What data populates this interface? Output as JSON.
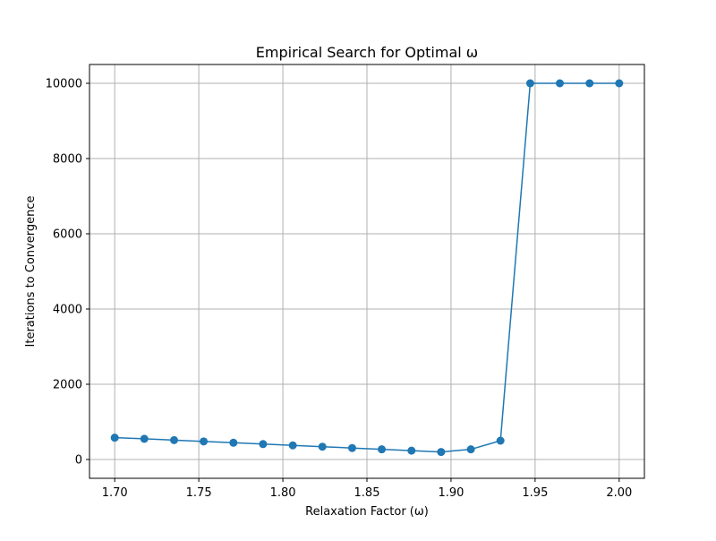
{
  "chart_data": {
    "type": "line",
    "title": "Empirical Search for Optimal ω",
    "xlabel": "Relaxation Factor (ω)",
    "ylabel": "Iterations to Convergence",
    "xlim": [
      1.685,
      2.015
    ],
    "ylim": [
      -500,
      10500
    ],
    "grid": true,
    "x_ticks": [
      1.7,
      1.75,
      1.8,
      1.85,
      1.9,
      1.95,
      2.0
    ],
    "x_tick_labels": [
      "1.70",
      "1.75",
      "1.80",
      "1.85",
      "1.90",
      "1.95",
      "2.00"
    ],
    "y_ticks": [
      0,
      2000,
      4000,
      6000,
      8000,
      10000
    ],
    "y_tick_labels": [
      "0",
      "2000",
      "4000",
      "6000",
      "8000",
      "10000"
    ],
    "series_color": "#1f77b4",
    "series": [
      {
        "x": [
          1.7,
          1.7176,
          1.7353,
          1.7529,
          1.7706,
          1.7882,
          1.8059,
          1.8235,
          1.8412,
          1.8588,
          1.8765,
          1.8941,
          1.9118,
          1.9294,
          1.9471,
          1.9647,
          1.9824,
          2.0
        ],
        "values": [
          580,
          550,
          515,
          480,
          445,
          410,
          375,
          340,
          305,
          270,
          235,
          200,
          270,
          500,
          10000,
          10000,
          10000,
          10000
        ]
      }
    ]
  }
}
